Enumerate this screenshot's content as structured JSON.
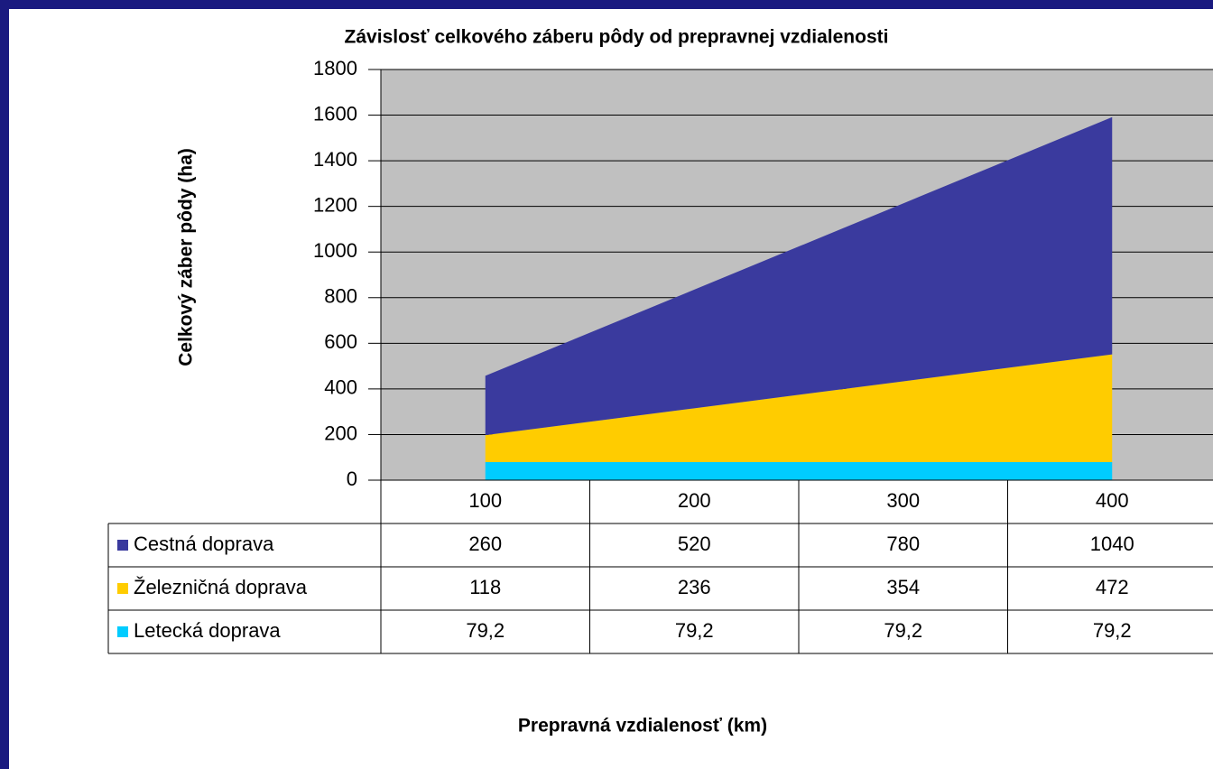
{
  "chart_data": {
    "type": "stacked_area",
    "title": "Závislosť celkového záberu pôdy od prepravnej vzdialenosti",
    "y_label": "Celkový záber pôdy (ha)",
    "x_label": "Prepravná vzdialenosť (km)",
    "categories": [
      "100",
      "200",
      "300",
      "400"
    ],
    "series": [
      {
        "name": "Cestná doprava",
        "color": "#3a3a9e",
        "values": [
          260,
          520,
          780,
          1040
        ]
      },
      {
        "name": "Železničná doprava",
        "color": "#ffcc00",
        "values": [
          118,
          236,
          354,
          472
        ]
      },
      {
        "name": "Letecká doprava",
        "color": "#00ccff",
        "values": [
          79.2,
          79.2,
          79.2,
          79.2
        ],
        "value_labels": [
          "79,2",
          "79,2",
          "79,2",
          "79,2"
        ]
      }
    ],
    "ylim": [
      0,
      1800
    ],
    "yticks": [
      0,
      200,
      400,
      600,
      800,
      1000,
      1200,
      1400,
      1600,
      1800
    ],
    "grid": true,
    "plot_background": "#c0c0c0"
  }
}
